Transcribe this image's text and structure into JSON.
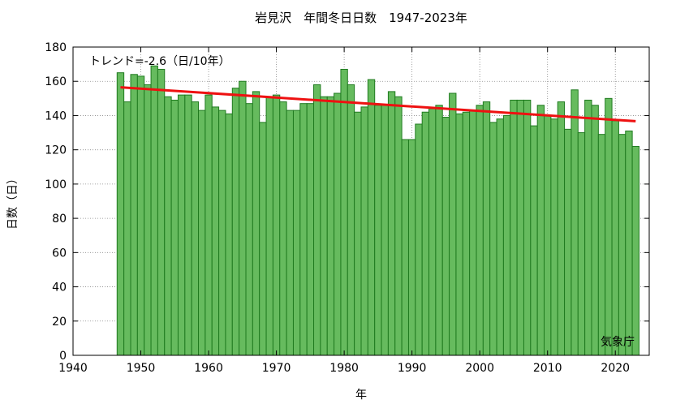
{
  "chart_data": {
    "type": "bar",
    "title": "岩見沢　年間冬日日数　1947-2023年",
    "xlabel": "年",
    "ylabel": "日数（日）",
    "trend_label": "トレンド=-2.6（日/10年）",
    "source_label": "気象庁",
    "xlim": [
      1940,
      2025
    ],
    "ylim": [
      0,
      180
    ],
    "xticks": [
      1940,
      1950,
      1960,
      1970,
      1980,
      1990,
      2000,
      2010,
      2020
    ],
    "yticks": [
      0,
      20,
      40,
      60,
      80,
      100,
      120,
      140,
      160,
      180
    ],
    "grid": true,
    "bar_color": "#66bb5e",
    "bar_edge_color": "#1f7a1f",
    "trend_color": "#ee1111",
    "x": [
      1947,
      1948,
      1949,
      1950,
      1951,
      1952,
      1953,
      1954,
      1955,
      1956,
      1957,
      1958,
      1959,
      1960,
      1961,
      1962,
      1963,
      1964,
      1965,
      1966,
      1967,
      1968,
      1969,
      1970,
      1971,
      1972,
      1973,
      1974,
      1975,
      1976,
      1977,
      1978,
      1979,
      1980,
      1981,
      1982,
      1983,
      1984,
      1985,
      1986,
      1987,
      1988,
      1989,
      1990,
      1991,
      1992,
      1993,
      1994,
      1995,
      1996,
      1997,
      1998,
      1999,
      2000,
      2001,
      2002,
      2003,
      2004,
      2005,
      2006,
      2007,
      2008,
      2009,
      2010,
      2011,
      2012,
      2013,
      2014,
      2015,
      2016,
      2017,
      2018,
      2019,
      2020,
      2021,
      2022,
      2023
    ],
    "values": [
      165,
      148,
      164,
      163,
      158,
      169,
      167,
      151,
      149,
      152,
      152,
      148,
      143,
      152,
      145,
      143,
      141,
      156,
      160,
      147,
      154,
      136,
      151,
      152,
      148,
      143,
      143,
      147,
      147,
      158,
      151,
      151,
      153,
      167,
      158,
      142,
      145,
      161,
      146,
      146,
      154,
      151,
      126,
      126,
      135,
      142,
      144,
      146,
      139,
      153,
      141,
      142,
      143,
      146,
      148,
      136,
      138,
      140,
      149,
      149,
      149,
      134,
      146,
      140,
      138,
      148,
      132,
      155,
      130,
      149,
      146,
      129,
      150,
      137,
      129,
      131,
      122
    ],
    "trend": {
      "x": [
        1947,
        2023
      ],
      "y": [
        156.5,
        136.7
      ]
    }
  }
}
